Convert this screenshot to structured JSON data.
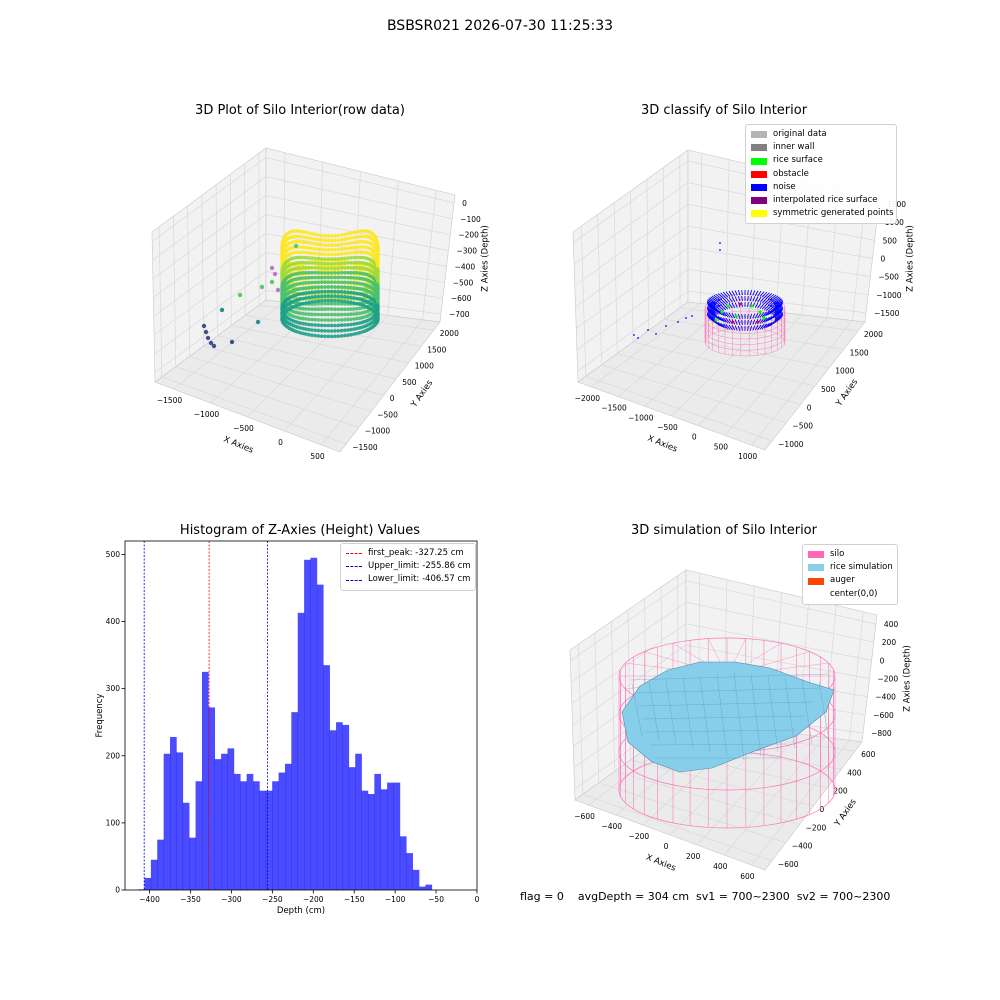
{
  "figure": {
    "suptitle": "BSBSR021 2026-07-30 11:25:33",
    "status_line": "flag = 0    avgDepth = 304 cm  sv1 = 700~2300  sv2 = 700~2300"
  },
  "plots": {
    "raw": {
      "title": "3D Plot of Silo Interior(row data)",
      "xlabel": "X Axies",
      "ylabel": "Y Axies",
      "zlabel": "Z Axies (Depth)",
      "xticks": [
        "−1500",
        "−1000",
        "−500",
        "0",
        "500"
      ],
      "yticks": [
        "−1500",
        "−1000",
        "−500",
        "0",
        "500",
        "1000",
        "1500",
        "2000"
      ],
      "zticks": [
        "0",
        "−100",
        "−200",
        "−300",
        "−400",
        "−500",
        "−600",
        "−700"
      ],
      "colormap": [
        "#440154",
        "#3b528b",
        "#21918c",
        "#5ec962",
        "#fde725"
      ]
    },
    "classify": {
      "title": "3D classify of Silo Interior",
      "xlabel": "X Axies",
      "ylabel": "Y Axies",
      "zlabel": "Z Axies (Depth)",
      "xticks": [
        "−2000",
        "−1500",
        "−1000",
        "−500",
        "0",
        "500",
        "1000"
      ],
      "yticks": [
        "−1000",
        "−500",
        "0",
        "500",
        "1000",
        "1500",
        "2000"
      ],
      "zticks": [
        "1500",
        "1000",
        "500",
        "0",
        "−500",
        "−1000",
        "−1500"
      ],
      "legend": [
        {
          "label": "original data",
          "color": "#b3b3b3"
        },
        {
          "label": "inner wall",
          "color": "#808080"
        },
        {
          "label": "rice surface",
          "color": "#00ff00"
        },
        {
          "label": "obstacle",
          "color": "#ff0000"
        },
        {
          "label": "noise",
          "color": "#0000ff"
        },
        {
          "label": "interpolated rice surface",
          "color": "#800080"
        },
        {
          "label": "symmetric generated points",
          "color": "#ffff00"
        }
      ]
    },
    "simulation": {
      "title": "3D simulation of Silo Interior",
      "xlabel": "X Axies",
      "ylabel": "Y Axies",
      "zlabel": "Z Axies (Depth)",
      "xticks": [
        "−600",
        "−400",
        "−200",
        "0",
        "200",
        "400",
        "600"
      ],
      "yticks": [
        "−600",
        "−400",
        "−200",
        "0",
        "200",
        "400",
        "600"
      ],
      "zticks": [
        "400",
        "200",
        "0",
        "−200",
        "−400",
        "−600",
        "−800"
      ],
      "legend": [
        {
          "label": "silo",
          "color": "#ff69b4"
        },
        {
          "label": "rice simulation",
          "color": "#87ceeb"
        },
        {
          "label": "auger",
          "color": "#ff4500"
        },
        {
          "label": "center(0,0)",
          "color": "#ffffff"
        }
      ]
    }
  },
  "chart_data": {
    "type": "bar",
    "title": "Histogram of Z-Axies (Height) Values",
    "xlabel": "Depth (cm)",
    "ylabel": "Frequency",
    "xlim": [
      -430,
      0
    ],
    "ylim": [
      0,
      520
    ],
    "xticks": [
      -400,
      -350,
      -300,
      -250,
      -200,
      -150,
      -100,
      -50,
      0
    ],
    "yticks": [
      0,
      100,
      200,
      300,
      400,
      500
    ],
    "bar_color": "#0000ff",
    "bin_edges_start": -414,
    "bin_width": 7.8,
    "counts": [
      1,
      18,
      45,
      75,
      203,
      228,
      205,
      130,
      78,
      162,
      325,
      272,
      195,
      203,
      211,
      173,
      162,
      173,
      162,
      148,
      148,
      162,
      175,
      188,
      265,
      413,
      492,
      495,
      455,
      335,
      238,
      250,
      246,
      183,
      203,
      148,
      143,
      173,
      150,
      160,
      160,
      80,
      55,
      30,
      5,
      8
    ],
    "legend_position": "upper right",
    "lines": [
      {
        "label": "first_peak: -327.25 cm",
        "x": -327.25,
        "color": "#ff0000"
      },
      {
        "label": "Upper_limit: -255.86 cm",
        "x": -255.86,
        "color": "#0000cc"
      },
      {
        "label": "Lower_limit: -406.57 cm",
        "x": -406.57,
        "color": "#0000cc"
      }
    ]
  }
}
